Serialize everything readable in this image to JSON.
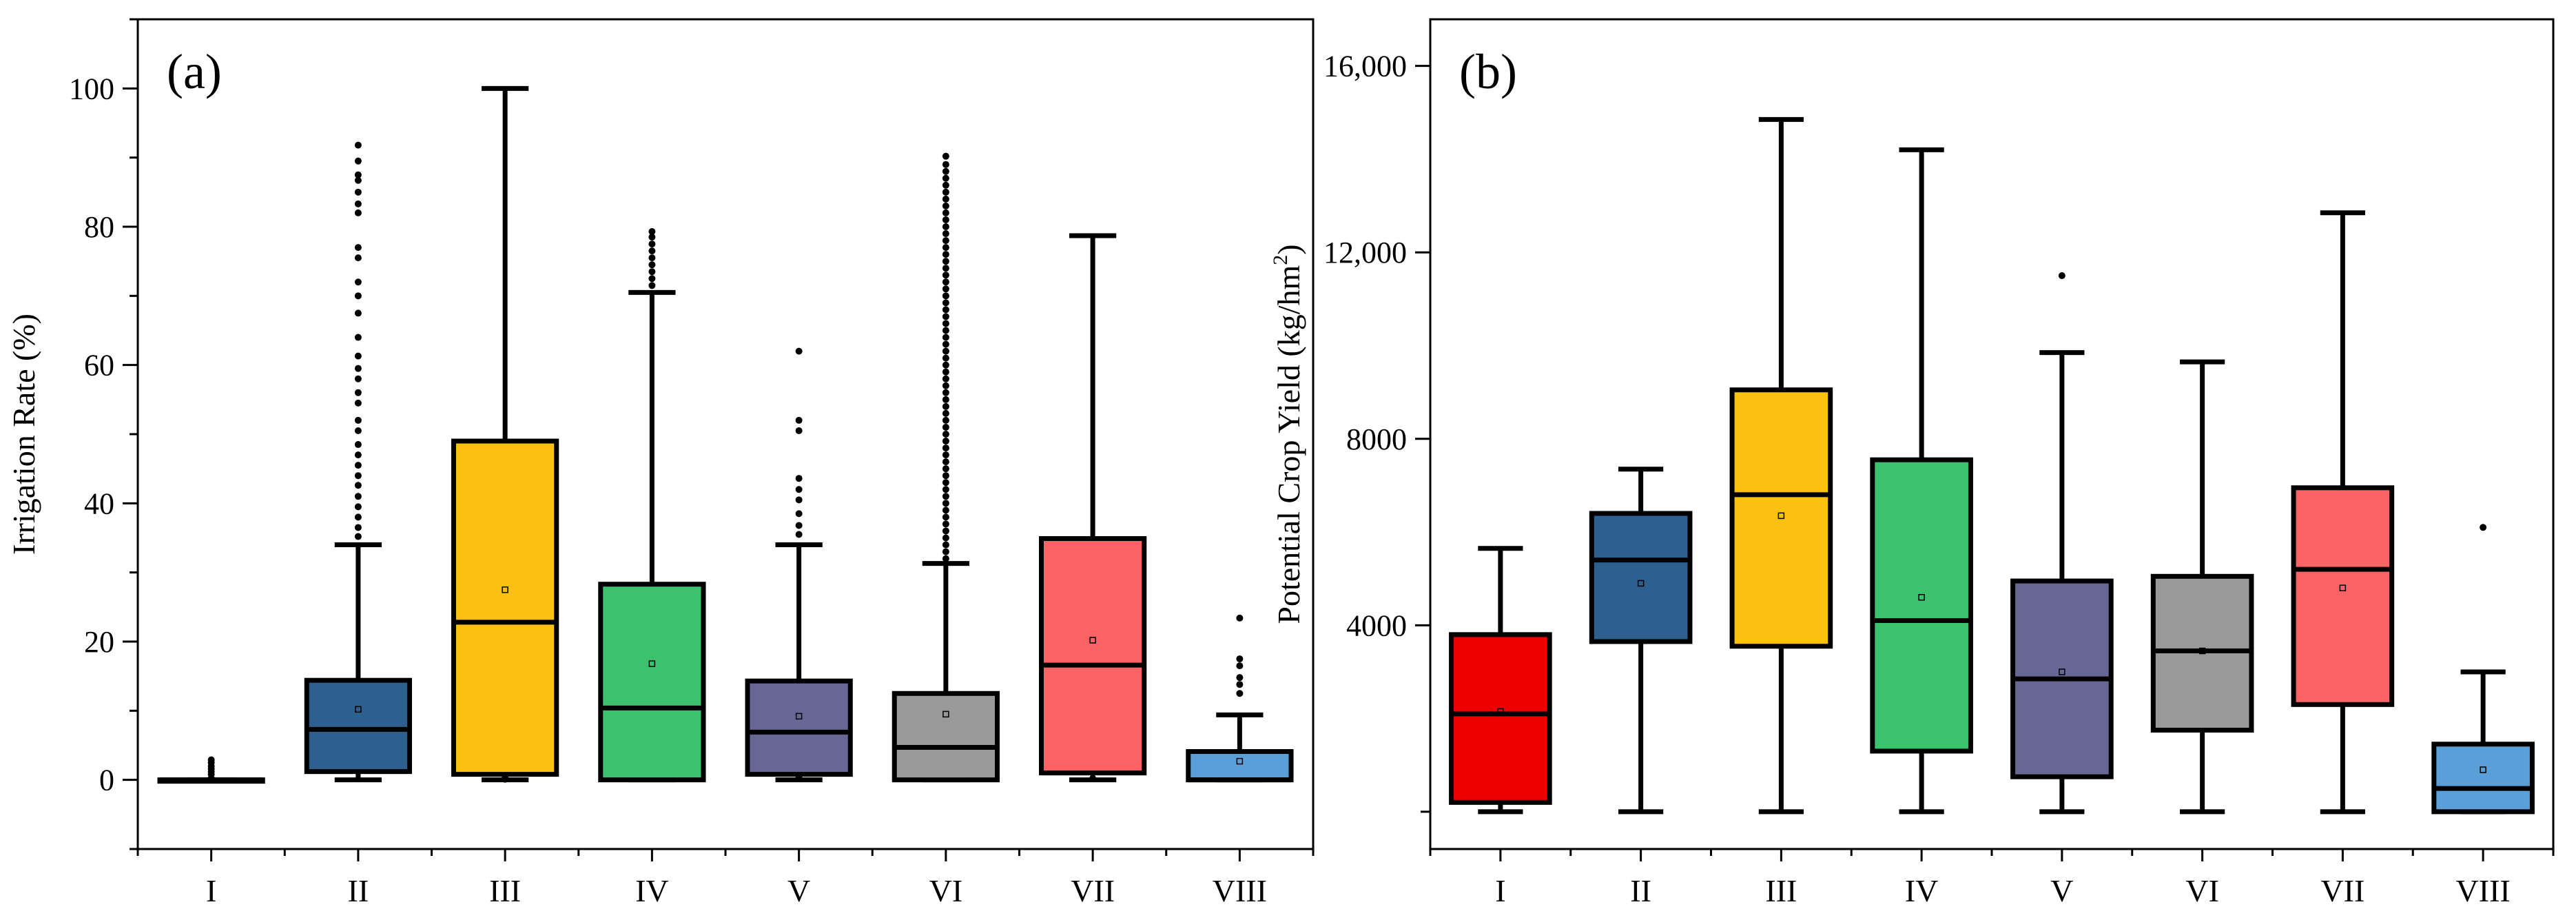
{
  "chart_data": [
    {
      "type": "box",
      "panel_label": "(a)",
      "ylabel": "Irrigation Rate (%)",
      "xlabel": "",
      "ylim": [
        -10,
        110
      ],
      "yticks": [
        0,
        20,
        40,
        60,
        80,
        100
      ],
      "ytick_labels": [
        "0",
        "20",
        "40",
        "60",
        "80",
        "100"
      ],
      "categories": [
        "I",
        "II",
        "III",
        "IV",
        "V",
        "VI",
        "VII",
        "VIII"
      ],
      "colors": [
        "#ee0000",
        "#2d5f8f",
        "#fcc010",
        "#3cc26c",
        "#676795",
        "#999999",
        "#fd6264",
        "#5b9fd8"
      ],
      "boxes": [
        {
          "whisker_low": 0,
          "q1": 0,
          "median": 0,
          "q3": 0,
          "whisker_high": 0,
          "mean": 0,
          "outliers": [
            0.8,
            1.2,
            1.6,
            2.0,
            2.5,
            2.9
          ]
        },
        {
          "whisker_low": 0,
          "q1": 1.2,
          "median": 7.3,
          "q3": 14.4,
          "whisker_high": 34,
          "mean": 10.2,
          "outliers": [
            35.2,
            36.5,
            38,
            39.5,
            41,
            42.6,
            44,
            45.5,
            47,
            48.5,
            50.5,
            52,
            54.5,
            56,
            58,
            59.5,
            61.3,
            64,
            67.5,
            70,
            72,
            75.5,
            77,
            82,
            83.3,
            85,
            86.7,
            87.5,
            89.5,
            91.8
          ]
        },
        {
          "whisker_low": 0,
          "q1": 0.8,
          "median": 22.8,
          "q3": 49,
          "whisker_high": 100,
          "mean": 27.5,
          "outliers": [
            0.1,
            0.3
          ]
        },
        {
          "whisker_low": 0,
          "q1": 0,
          "median": 10.4,
          "q3": 28.3,
          "whisker_high": 70.5,
          "mean": 16.8,
          "outliers": [
            71.5,
            72.5,
            73.5,
            74.5,
            75.5,
            76.5,
            77.5,
            78.5,
            79.3
          ]
        },
        {
          "whisker_low": 0,
          "q1": 0.8,
          "median": 6.9,
          "q3": 14.3,
          "whisker_high": 34,
          "mean": 9.2,
          "outliers": [
            35.5,
            36.8,
            38.5,
            40.5,
            42,
            43.6,
            50.5,
            52,
            62,
            0.2,
            0.5
          ]
        },
        {
          "whisker_low": 0,
          "q1": 0,
          "median": 4.7,
          "q3": 12.5,
          "whisker_high": 31.3,
          "mean": 9.5,
          "outliers": [
            32,
            33,
            34,
            35,
            36,
            37,
            38,
            39,
            40,
            41,
            42,
            43,
            44,
            45,
            46,
            47,
            48,
            49,
            50,
            51,
            52,
            53,
            54,
            55,
            56,
            57,
            58,
            59,
            60,
            61,
            62,
            63,
            64,
            65,
            66,
            67,
            68,
            69,
            70,
            71,
            72,
            73,
            74,
            75,
            76,
            77,
            78,
            79,
            80,
            81,
            82,
            83,
            84,
            85,
            86,
            87,
            88,
            89,
            90.2
          ]
        },
        {
          "whisker_low": 0,
          "q1": 1,
          "median": 16.6,
          "q3": 34.9,
          "whisker_high": 78.7,
          "mean": 20.2,
          "outliers": [
            0.2
          ]
        },
        {
          "whisker_low": 0,
          "q1": 0,
          "median": 0,
          "q3": 4.1,
          "whisker_high": 9.4,
          "mean": 2.7,
          "outliers": [
            12.5,
            13.8,
            14.8,
            16.5,
            17.5,
            23.4
          ]
        }
      ]
    },
    {
      "type": "box",
      "panel_label": "(b)",
      "ylabel": "Potential Crop Yield (kg/hm",
      "ylabel_superscript": "2",
      "ylabel_close": ")",
      "xlabel": "",
      "ylim": [
        -800,
        17000
      ],
      "yticks": [
        4000,
        8000,
        12000,
        16000
      ],
      "ytick_labels": [
        "4000",
        "8000",
        "12,000",
        "16,000"
      ],
      "minor_ticks": [
        0
      ],
      "categories": [
        "I",
        "II",
        "III",
        "IV",
        "V",
        "VI",
        "VII",
        "VIII"
      ],
      "colors": [
        "#ee0000",
        "#2d5f8f",
        "#fcc010",
        "#3cc26c",
        "#676795",
        "#999999",
        "#fd6264",
        "#5b9fd8"
      ],
      "boxes": [
        {
          "whisker_low": 0,
          "q1": 200,
          "median": 2100,
          "q3": 3800,
          "whisker_high": 5650,
          "mean": 2150,
          "outliers": []
        },
        {
          "whisker_low": 0,
          "q1": 3650,
          "median": 5400,
          "q3": 6400,
          "whisker_high": 7350,
          "mean": 4900,
          "outliers": []
        },
        {
          "whisker_low": 0,
          "q1": 3550,
          "median": 6800,
          "q3": 9050,
          "whisker_high": 14850,
          "mean": 6350,
          "outliers": []
        },
        {
          "whisker_low": 0,
          "q1": 1300,
          "median": 4100,
          "q3": 7550,
          "whisker_high": 14200,
          "mean": 4600,
          "outliers": []
        },
        {
          "whisker_low": 0,
          "q1": 750,
          "median": 2850,
          "q3": 4950,
          "whisker_high": 9850,
          "mean": 3000,
          "outliers": [
            11500
          ]
        },
        {
          "whisker_low": 0,
          "q1": 1750,
          "median": 3450,
          "q3": 5050,
          "whisker_high": 9650,
          "mean": 3450,
          "outliers": []
        },
        {
          "whisker_low": 0,
          "q1": 2300,
          "median": 5200,
          "q3": 6950,
          "whisker_high": 12850,
          "mean": 4800,
          "outliers": []
        },
        {
          "whisker_low": 0,
          "q1": 0,
          "median": 500,
          "q3": 1450,
          "whisker_high": 3000,
          "mean": 900,
          "outliers": [
            6100
          ]
        }
      ]
    }
  ]
}
